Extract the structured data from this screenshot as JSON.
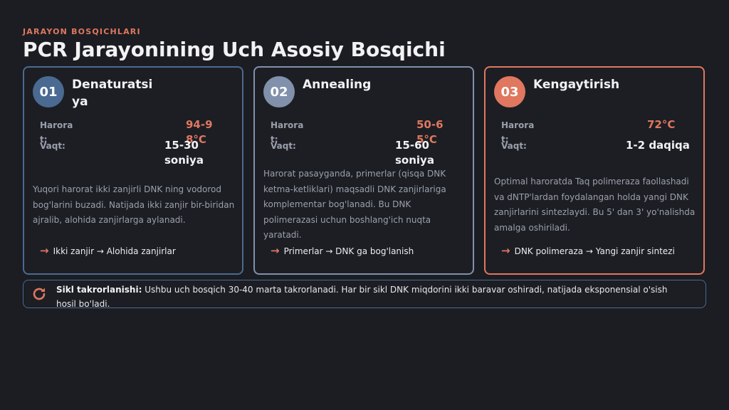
{
  "header": {
    "eyebrow": "JARAYON BOSQICHLARI",
    "title": "PCR Jarayonining Uch Asosiy Bosqichi"
  },
  "colors": {
    "accent": "#e0775f",
    "step1": "#4a6a91",
    "step2": "#8190ab",
    "step3": "#e0775f",
    "background": "#1b1d22"
  },
  "steps": [
    {
      "number": "01",
      "title": "Denaturatsiya",
      "temp_label": "Harorat:",
      "temp_value": "94-98°C",
      "time_label": "Vaqt:",
      "time_value": "15-30 soniya",
      "description": "Yuqori harorat ikki zanjirli DNK ning vodorod bog'larini buzadi. Natijada ikki zanjir bir-biridan ajralib, alohida zanjirlarga aylanadi.",
      "flow_icon": "arrow-right-icon",
      "flow": "Ikki zanjir → Alohida zanjirlar"
    },
    {
      "number": "02",
      "title": "Annealing",
      "temp_label": "Harorat:",
      "temp_value": "50-65°C",
      "time_label": "Vaqt:",
      "time_value": "15-60 soniya",
      "description": "Harorat pasayganda, primerlar (qisqa DNK ketma-ketliklari) maqsadli DNK zanjirlariga komplementar bog'lanadi. Bu DNK polimerazasi uchun boshlang'ich nuqta yaratadi.",
      "flow_icon": "arrow-right-icon",
      "flow": "Primerlar → DNK ga bog'lanish"
    },
    {
      "number": "03",
      "title": "Kengaytirish",
      "temp_label": "Harorat:",
      "temp_value": "72°C",
      "time_label": "Vaqt:",
      "time_value": "1-2 daqiqa",
      "description": "Optimal haroratda Taq polimeraza faollashadi va dNTP'lardan foydalangan holda yangi DNK zanjirlarini sintezlaydi. Bu 5' dan 3' yo'nalishda amalga oshiriladi.",
      "flow_icon": "arrow-right-icon",
      "flow": "DNK polimeraza → Yangi zanjir sintezi"
    }
  ],
  "footer": {
    "icon": "refresh-icon",
    "label": "Sikl takrorlanishi:",
    "text": "Ushbu uch bosqich 30-40 marta takrorlanadi. Har bir sikl DNK miqdorini ikki baravar oshiradi, natijada eksponensial o'sish hosil bo'ladi."
  }
}
